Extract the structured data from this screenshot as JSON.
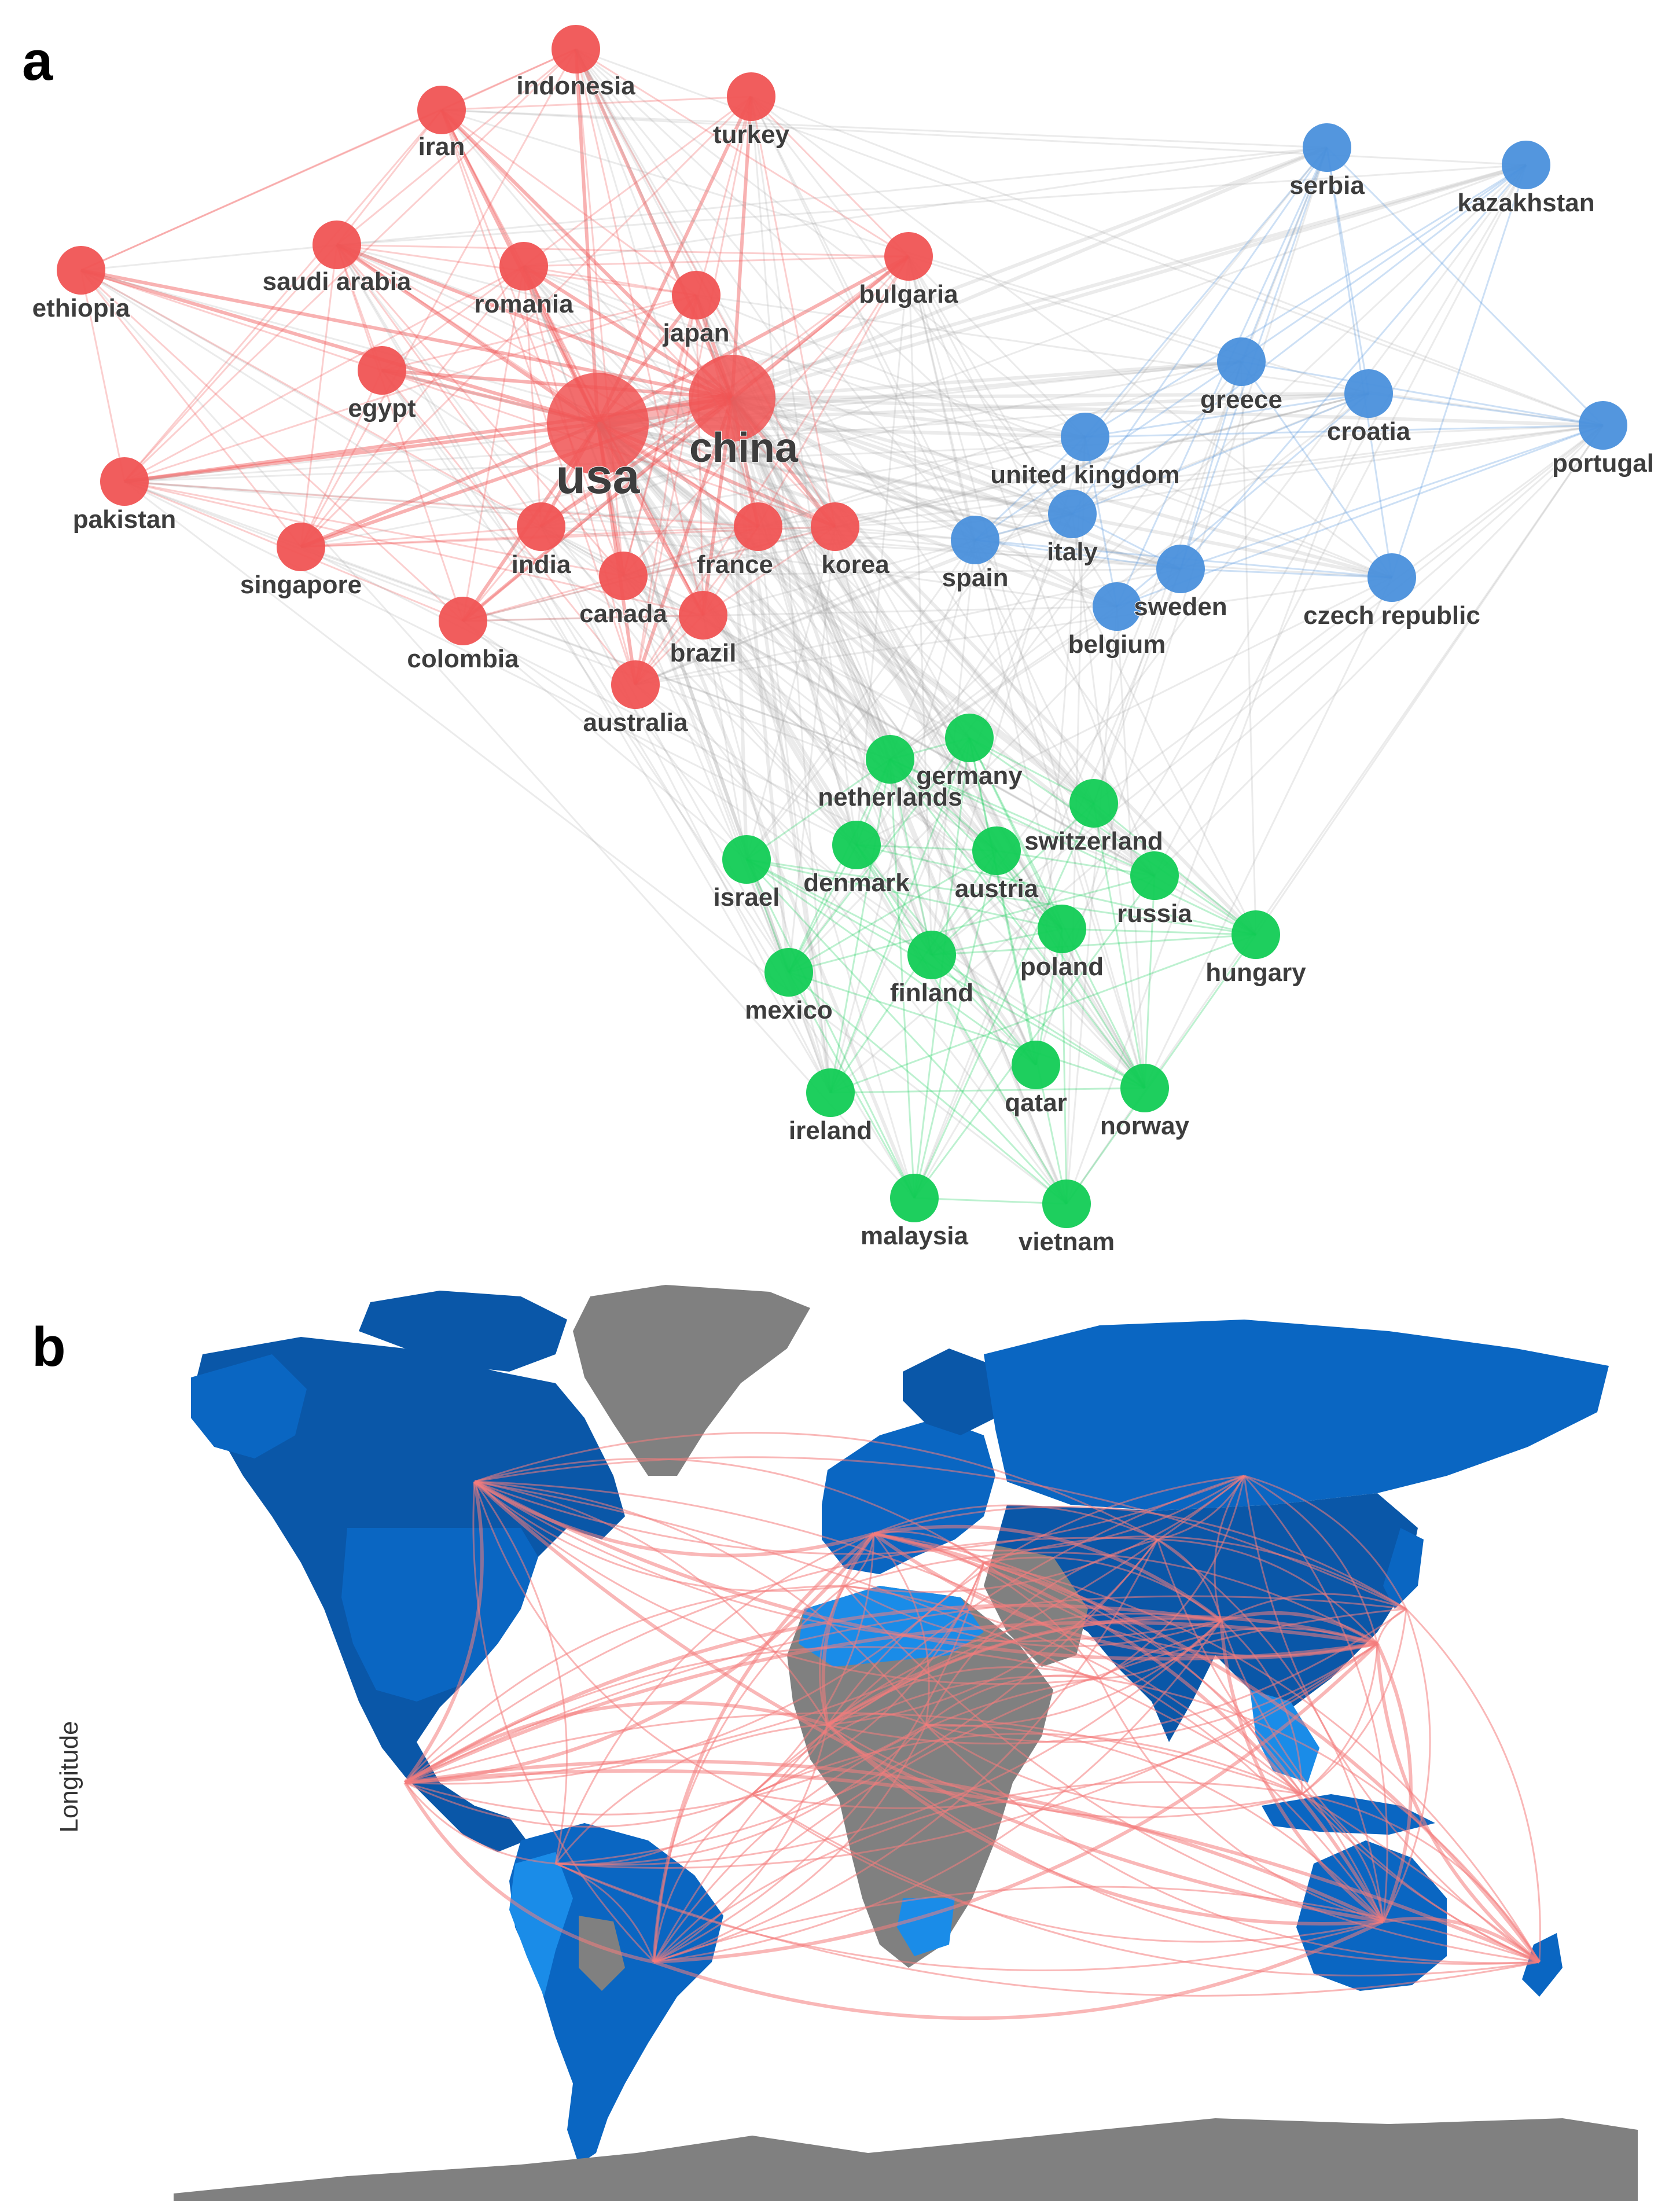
{
  "panels": {
    "a": {
      "letter": "a"
    },
    "b": {
      "letter": "b",
      "axis_label": "Longitude"
    }
  },
  "colors": {
    "cluster_red": "#f05454",
    "cluster_blue": "#4a90dc",
    "cluster_green": "#12cc55",
    "edge_gray": "#9a9a9a",
    "map_dark": "#0a57a8",
    "map_mid": "#0a66c2",
    "map_light": "#1a8ce8",
    "map_gray": "#808080",
    "flow": "#f47c7c"
  },
  "network": {
    "nodes": [
      {
        "id": "usa",
        "label": "usa",
        "cluster": "red",
        "size": "xl"
      },
      {
        "id": "china",
        "label": "china",
        "cluster": "red",
        "size": "lg"
      },
      {
        "id": "indonesia",
        "label": "indonesia",
        "cluster": "red",
        "size": "sm"
      },
      {
        "id": "iran",
        "label": "iran",
        "cluster": "red",
        "size": "sm"
      },
      {
        "id": "turkey",
        "label": "turkey",
        "cluster": "red",
        "size": "sm"
      },
      {
        "id": "saudi-arabia",
        "label": "saudi arabia",
        "cluster": "red",
        "size": "sm"
      },
      {
        "id": "ethiopia",
        "label": "ethiopia",
        "cluster": "red",
        "size": "sm"
      },
      {
        "id": "romania",
        "label": "romania",
        "cluster": "red",
        "size": "sm"
      },
      {
        "id": "bulgaria",
        "label": "bulgaria",
        "cluster": "red",
        "size": "sm"
      },
      {
        "id": "japan",
        "label": "japan",
        "cluster": "red",
        "size": "sm"
      },
      {
        "id": "egypt",
        "label": "egypt",
        "cluster": "red",
        "size": "sm"
      },
      {
        "id": "pakistan",
        "label": "pakistan",
        "cluster": "red",
        "size": "sm"
      },
      {
        "id": "singapore",
        "label": "singapore",
        "cluster": "red",
        "size": "sm"
      },
      {
        "id": "india",
        "label": "india",
        "cluster": "red",
        "size": "sm"
      },
      {
        "id": "france",
        "label": "france",
        "cluster": "red",
        "size": "sm"
      },
      {
        "id": "korea",
        "label": "korea",
        "cluster": "red",
        "size": "sm"
      },
      {
        "id": "canada",
        "label": "canada",
        "cluster": "red",
        "size": "sm"
      },
      {
        "id": "brazil",
        "label": "brazil",
        "cluster": "red",
        "size": "sm"
      },
      {
        "id": "colombia",
        "label": "colombia",
        "cluster": "red",
        "size": "sm"
      },
      {
        "id": "australia",
        "label": "australia",
        "cluster": "red",
        "size": "sm"
      },
      {
        "id": "serbia",
        "label": "serbia",
        "cluster": "blue",
        "size": "sm"
      },
      {
        "id": "kazakhstan",
        "label": "kazakhstan",
        "cluster": "blue",
        "size": "sm"
      },
      {
        "id": "greece",
        "label": "greece",
        "cluster": "blue",
        "size": "sm"
      },
      {
        "id": "croatia",
        "label": "croatia",
        "cluster": "blue",
        "size": "sm"
      },
      {
        "id": "portugal",
        "label": "portugal",
        "cluster": "blue",
        "size": "sm"
      },
      {
        "id": "united-kingdom",
        "label": "united kingdom",
        "cluster": "blue",
        "size": "sm"
      },
      {
        "id": "italy",
        "label": "italy",
        "cluster": "blue",
        "size": "sm"
      },
      {
        "id": "spain",
        "label": "spain",
        "cluster": "blue",
        "size": "sm"
      },
      {
        "id": "sweden",
        "label": "sweden",
        "cluster": "blue",
        "size": "sm"
      },
      {
        "id": "belgium",
        "label": "belgium",
        "cluster": "blue",
        "size": "sm"
      },
      {
        "id": "czech-republic",
        "label": "czech republic",
        "cluster": "blue",
        "size": "sm"
      },
      {
        "id": "germany",
        "label": "germany",
        "cluster": "green",
        "size": "sm"
      },
      {
        "id": "netherlands",
        "label": "netherlands",
        "cluster": "green",
        "size": "sm"
      },
      {
        "id": "switzerland",
        "label": "switzerland",
        "cluster": "green",
        "size": "sm"
      },
      {
        "id": "israel",
        "label": "israel",
        "cluster": "green",
        "size": "sm"
      },
      {
        "id": "denmark",
        "label": "denmark",
        "cluster": "green",
        "size": "sm"
      },
      {
        "id": "austria",
        "label": "austria",
        "cluster": "green",
        "size": "sm"
      },
      {
        "id": "russia",
        "label": "russia",
        "cluster": "green",
        "size": "sm"
      },
      {
        "id": "poland",
        "label": "poland",
        "cluster": "green",
        "size": "sm"
      },
      {
        "id": "hungary",
        "label": "hungary",
        "cluster": "green",
        "size": "sm"
      },
      {
        "id": "mexico",
        "label": "mexico",
        "cluster": "green",
        "size": "sm"
      },
      {
        "id": "finland",
        "label": "finland",
        "cluster": "green",
        "size": "sm"
      },
      {
        "id": "qatar",
        "label": "qatar",
        "cluster": "green",
        "size": "sm"
      },
      {
        "id": "norway",
        "label": "norway",
        "cluster": "green",
        "size": "sm"
      },
      {
        "id": "ireland",
        "label": "ireland",
        "cluster": "green",
        "size": "sm"
      },
      {
        "id": "malaysia",
        "label": "malaysia",
        "cluster": "green",
        "size": "sm"
      },
      {
        "id": "vietnam",
        "label": "vietnam",
        "cluster": "green",
        "size": "sm"
      }
    ]
  }
}
